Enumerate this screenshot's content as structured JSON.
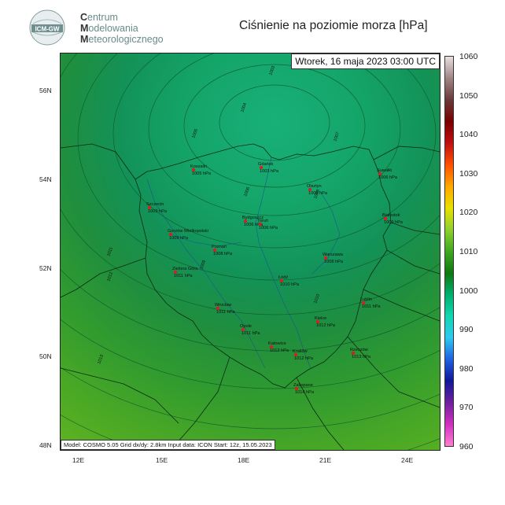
{
  "logo": {
    "badge": "ICM-GW",
    "line1_first": "C",
    "line1_rest": "entrum",
    "line2_first": "M",
    "line2_rest": "odelowania",
    "line3_first": "M",
    "line3_rest": "eteorologicznego"
  },
  "title": "Ciśnienie na poziomie morza [hPa]",
  "date_label": "Wtorek, 16 maja 2023 03:00 UTC",
  "model_info": "Model: COSMO 5.05   Grid dx/dy: 2.8km   Input data: ICON   Start: 12z, 15.05.2023",
  "axes": {
    "lat_labels": [
      "56N",
      "54N",
      "52N",
      "50N",
      "48N"
    ],
    "lon_labels": [
      "12E",
      "15E",
      "18E",
      "21E",
      "24E"
    ]
  },
  "colorbar": {
    "labels": [
      "1060",
      "1050",
      "1040",
      "1030",
      "1020",
      "1010",
      "1000",
      "990",
      "980",
      "970",
      "960"
    ],
    "colors": [
      "#e8e0e0",
      "#a08484",
      "#6a3a3a",
      "#7a0000",
      "#c01010",
      "#ff5000",
      "#ffa800",
      "#e8e000",
      "#90d030",
      "#40a820",
      "#107810",
      "#00b070",
      "#10d8b0",
      "#30c8f0",
      "#2060e0",
      "#101898",
      "#7020a0",
      "#d030c0",
      "#ff80d0"
    ]
  },
  "cities": [
    {
      "name": "Gdańsk",
      "value": "1003 hPa"
    },
    {
      "name": "Koszalin",
      "value": "1005 hPa"
    },
    {
      "name": "Suwałki",
      "value": "1006 hPa"
    },
    {
      "name": "Olsztyn",
      "value": "1005 hPa"
    },
    {
      "name": "Szczecin",
      "value": "1009 hPa"
    },
    {
      "name": "Białystok",
      "value": "1009 hPa"
    },
    {
      "name": "Bydgoszcz",
      "value": "1006 hPa"
    },
    {
      "name": "Toruń",
      "value": "1006 hPa"
    },
    {
      "name": "Gorzów Wielkopolski",
      "value": "1009 hPa"
    },
    {
      "name": "Poznań",
      "value": "1008 hPa"
    },
    {
      "name": "Warszawa",
      "value": "1008 hPa"
    },
    {
      "name": "Zielona Góra",
      "value": "1011 hPa"
    },
    {
      "name": "Łódź",
      "value": "1010 hPa"
    },
    {
      "name": "Lublin",
      "value": "1011 hPa"
    },
    {
      "name": "Wrocław",
      "value": "1011 hPa"
    },
    {
      "name": "Kielce",
      "value": "1012 hPa"
    },
    {
      "name": "Opole",
      "value": "1011 hPa"
    },
    {
      "name": "Katowice",
      "value": "1012 hPa"
    },
    {
      "name": "Kraków",
      "value": "1012 hPa"
    },
    {
      "name": "Rzeszów",
      "value": "1013 hPa"
    },
    {
      "name": "Zakopane",
      "value": "1014 hPa"
    }
  ],
  "isobar_labels": [
    "1003",
    "1004",
    "1005",
    "1006",
    "1007",
    "1008",
    "1009",
    "1010",
    "1011",
    "1012",
    "1013"
  ]
}
